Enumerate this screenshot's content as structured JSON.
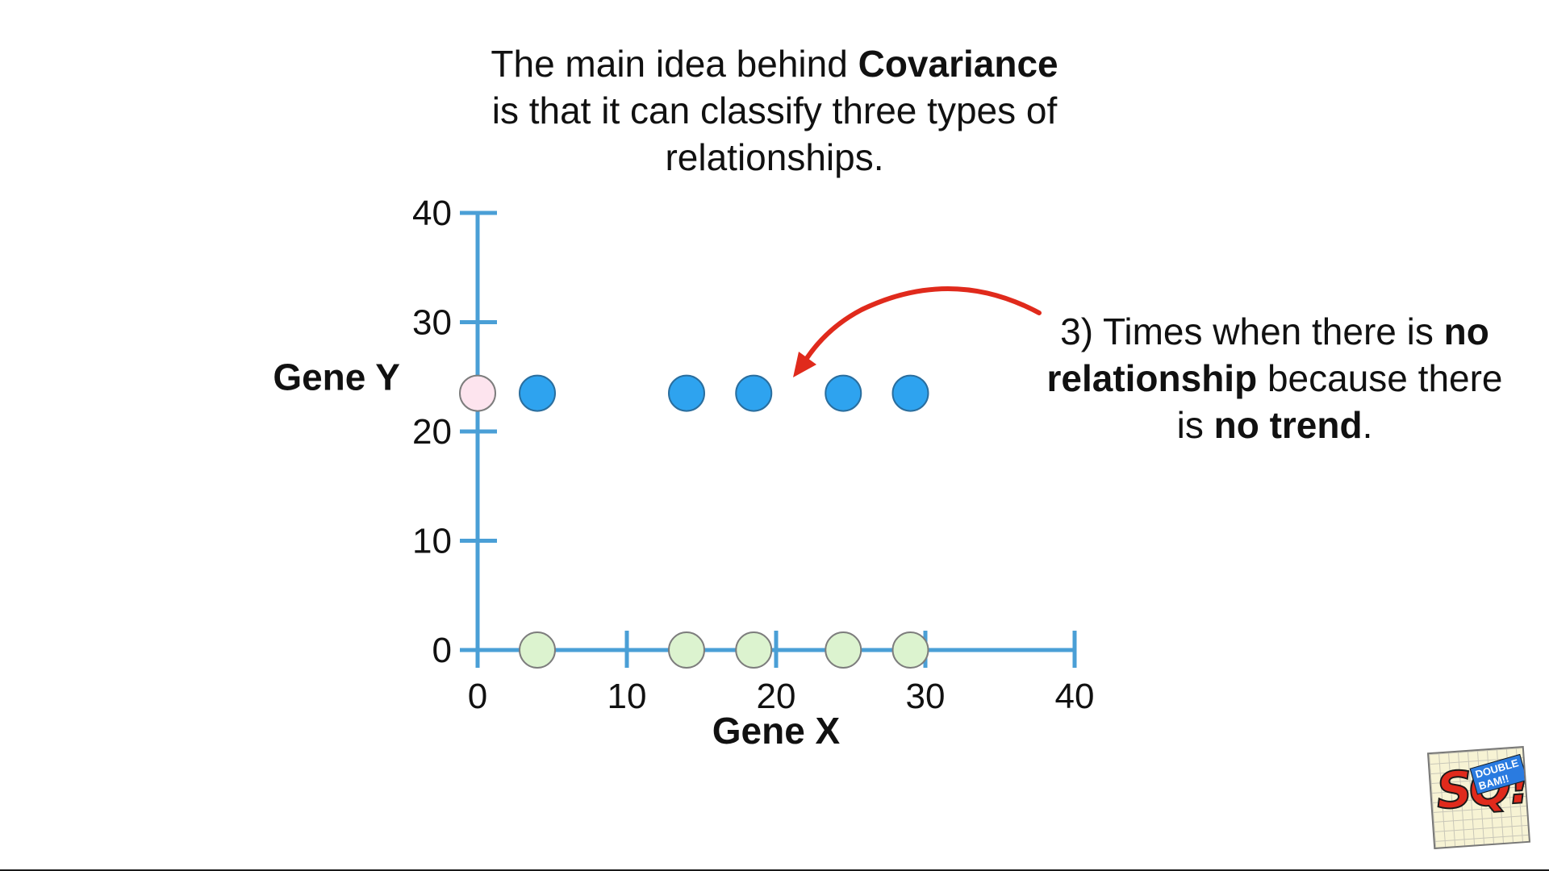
{
  "title": {
    "line1_pre": "The main idea behind ",
    "line1_bold": "Covariance",
    "line2": "is that it can classify three types of",
    "line3": "relationships."
  },
  "callout": {
    "part1": "3) Times when there is ",
    "bold1": "no relationship",
    "part2": " because there is ",
    "bold2": "no trend",
    "part3": "."
  },
  "logo": {
    "letters": "SQ!",
    "banner": "DOUBLE BAM!!"
  },
  "colors": {
    "axis": "#4a9fd6",
    "point_blue": "#2ea3ef",
    "point_blue_stroke": "#2a6e9e",
    "point_green": "#dcf3cf",
    "point_pink": "#fde4ee",
    "point_light_stroke": "#7d7d7d",
    "arrow": "#e02a1c",
    "text": "#111111"
  },
  "chart_data": {
    "type": "scatter",
    "xlabel": "Gene X",
    "ylabel": "Gene Y",
    "xlim": [
      0,
      40
    ],
    "ylim": [
      0,
      40
    ],
    "xticks": [
      0,
      10,
      20,
      30,
      40
    ],
    "yticks": [
      0,
      10,
      20,
      30,
      40
    ],
    "grid": false,
    "series": [
      {
        "role": "data",
        "color": "#2ea3ef",
        "points": [
          [
            4,
            23.5
          ],
          [
            14,
            23.5
          ],
          [
            18.5,
            23.5
          ],
          [
            24.5,
            23.5
          ],
          [
            29,
            23.5
          ]
        ]
      },
      {
        "role": "x-projection",
        "color": "#dcf3cf",
        "points": [
          [
            4,
            0
          ],
          [
            14,
            0
          ],
          [
            18.5,
            0
          ],
          [
            24.5,
            0
          ],
          [
            29,
            0
          ]
        ]
      },
      {
        "role": "y-projection",
        "color": "#fde4ee",
        "points": [
          [
            0,
            23.5
          ]
        ]
      }
    ]
  }
}
